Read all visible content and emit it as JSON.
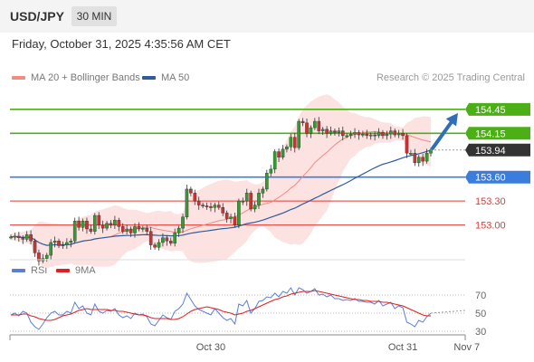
{
  "header": {
    "symbol": "USD/JPY",
    "timeframe": "30 MIN"
  },
  "timestamp": "Friday, October 31, 2025 4:35:56 AM CET",
  "copyright": "Research © 2025 Trading Central",
  "legend": {
    "bb": {
      "label": "MA 20 + Bollinger Bands",
      "color": "#f28b82"
    },
    "ma50": {
      "label": "MA 50",
      "color": "#2e5c9e"
    },
    "rsi": {
      "label": "RSI",
      "color": "#5b7fd6"
    },
    "ma9": {
      "label": "9MA",
      "color": "#e02020"
    }
  },
  "chart_data": [
    {
      "type": "candlestick",
      "ylim": [
        152.53,
        154.8
      ],
      "x_labels": [
        {
          "label": "Oct 30",
          "index": 50
        },
        {
          "label": "Oct 31",
          "index": 98
        },
        {
          "label": "Nov 7",
          "index": 114
        }
      ],
      "levels": [
        {
          "value": 154.45,
          "label": "154.45",
          "color": "#4caf16",
          "role": "resistance"
        },
        {
          "value": 154.15,
          "label": "154.15",
          "color": "#4caf16",
          "role": "resistance"
        },
        {
          "value": 153.6,
          "label": "153.60",
          "color": "#3b7ddd",
          "role": "pivot"
        },
        {
          "value": 153.3,
          "label": "153.30",
          "color": "#e53935",
          "role": "support"
        },
        {
          "value": 153.0,
          "label": "153.00",
          "color": "#e53935",
          "role": "support"
        }
      ],
      "last_price": {
        "value": 153.94,
        "label": "153.94"
      },
      "candles": [
        152.85,
        152.86,
        152.84,
        152.82,
        152.88,
        152.8,
        152.65,
        152.55,
        152.58,
        152.62,
        152.78,
        152.8,
        152.74,
        152.75,
        152.78,
        152.8,
        153.05,
        152.97,
        153.05,
        152.95,
        152.92,
        153.12,
        153.0,
        152.96,
        153.02,
        153.0,
        153.06,
        152.98,
        152.92,
        152.95,
        152.9,
        152.98,
        152.95,
        152.96,
        152.92,
        152.75,
        152.72,
        152.78,
        152.84,
        152.8,
        152.77,
        152.9,
        152.96,
        153.1,
        153.45,
        153.4,
        153.3,
        153.25,
        153.24,
        153.23,
        153.22,
        153.25,
        153.22,
        153.15,
        153.08,
        153.1,
        153.0,
        153.3,
        153.3,
        153.4,
        153.2,
        153.25,
        153.4,
        153.45,
        153.65,
        153.7,
        153.92,
        153.85,
        153.95,
        153.98,
        154.1,
        153.97,
        154.3,
        154.28,
        154.15,
        154.22,
        154.3,
        154.18,
        154.2,
        154.15,
        154.18,
        154.16,
        154.18,
        154.12,
        154.12,
        154.14,
        154.16,
        154.13,
        154.14,
        154.12,
        154.13,
        154.12,
        154.16,
        154.12,
        154.14,
        154.18,
        154.13,
        154.15,
        154.12,
        153.9,
        153.9,
        153.78,
        153.85,
        153.8,
        153.9,
        153.94
      ],
      "forecast": {
        "target": 154.45
      }
    },
    {
      "type": "line",
      "ticks": [
        70,
        50,
        30
      ],
      "ylim": [
        20,
        85
      ],
      "series": [
        {
          "name": "RSI",
          "color": "#5b7fd6",
          "values": [
            48,
            50,
            47,
            52,
            50,
            40,
            35,
            32,
            38,
            45,
            50,
            52,
            48,
            48,
            52,
            50,
            62,
            55,
            58,
            50,
            48,
            60,
            52,
            50,
            53,
            52,
            55,
            48,
            45,
            47,
            44,
            50,
            48,
            49,
            46,
            38,
            36,
            42,
            48,
            45,
            43,
            52,
            55,
            60,
            72,
            65,
            58,
            54,
            52,
            50,
            48,
            55,
            50,
            45,
            42,
            44,
            38,
            60,
            58,
            64,
            50,
            55,
            63,
            64,
            68,
            67,
            72,
            68,
            74,
            72,
            78,
            70,
            78,
            76,
            72,
            74,
            77,
            70,
            71,
            68,
            70,
            66,
            66,
            64,
            65,
            64,
            66,
            63,
            63,
            62,
            62,
            60,
            64,
            58,
            60,
            62,
            55,
            58,
            56,
            40,
            38,
            35,
            42,
            40,
            46,
            50
          ]
        },
        {
          "name": "9MA",
          "color": "#e02020",
          "values": [
            48,
            48,
            48,
            49,
            49,
            47,
            46,
            44,
            43,
            42,
            42,
            43,
            45,
            47,
            48,
            49,
            51,
            53,
            54,
            55,
            54,
            54,
            54,
            54,
            54,
            53,
            53,
            52,
            52,
            51,
            50,
            49,
            48,
            48,
            47,
            45,
            44,
            44,
            44,
            44,
            43,
            43,
            44,
            46,
            49,
            52,
            54,
            55,
            56,
            57,
            56,
            55,
            54,
            52,
            51,
            50,
            48,
            49,
            50,
            52,
            53,
            55,
            57,
            59,
            61,
            63,
            65,
            66,
            68,
            69,
            71,
            72,
            73,
            74,
            74,
            74,
            75,
            74,
            73,
            72,
            71,
            70,
            69,
            68,
            67,
            66,
            65,
            65,
            64,
            64,
            63,
            63,
            63,
            62,
            62,
            61,
            60,
            59,
            58,
            56,
            54,
            52,
            50,
            48,
            47,
            47
          ]
        }
      ]
    }
  ]
}
